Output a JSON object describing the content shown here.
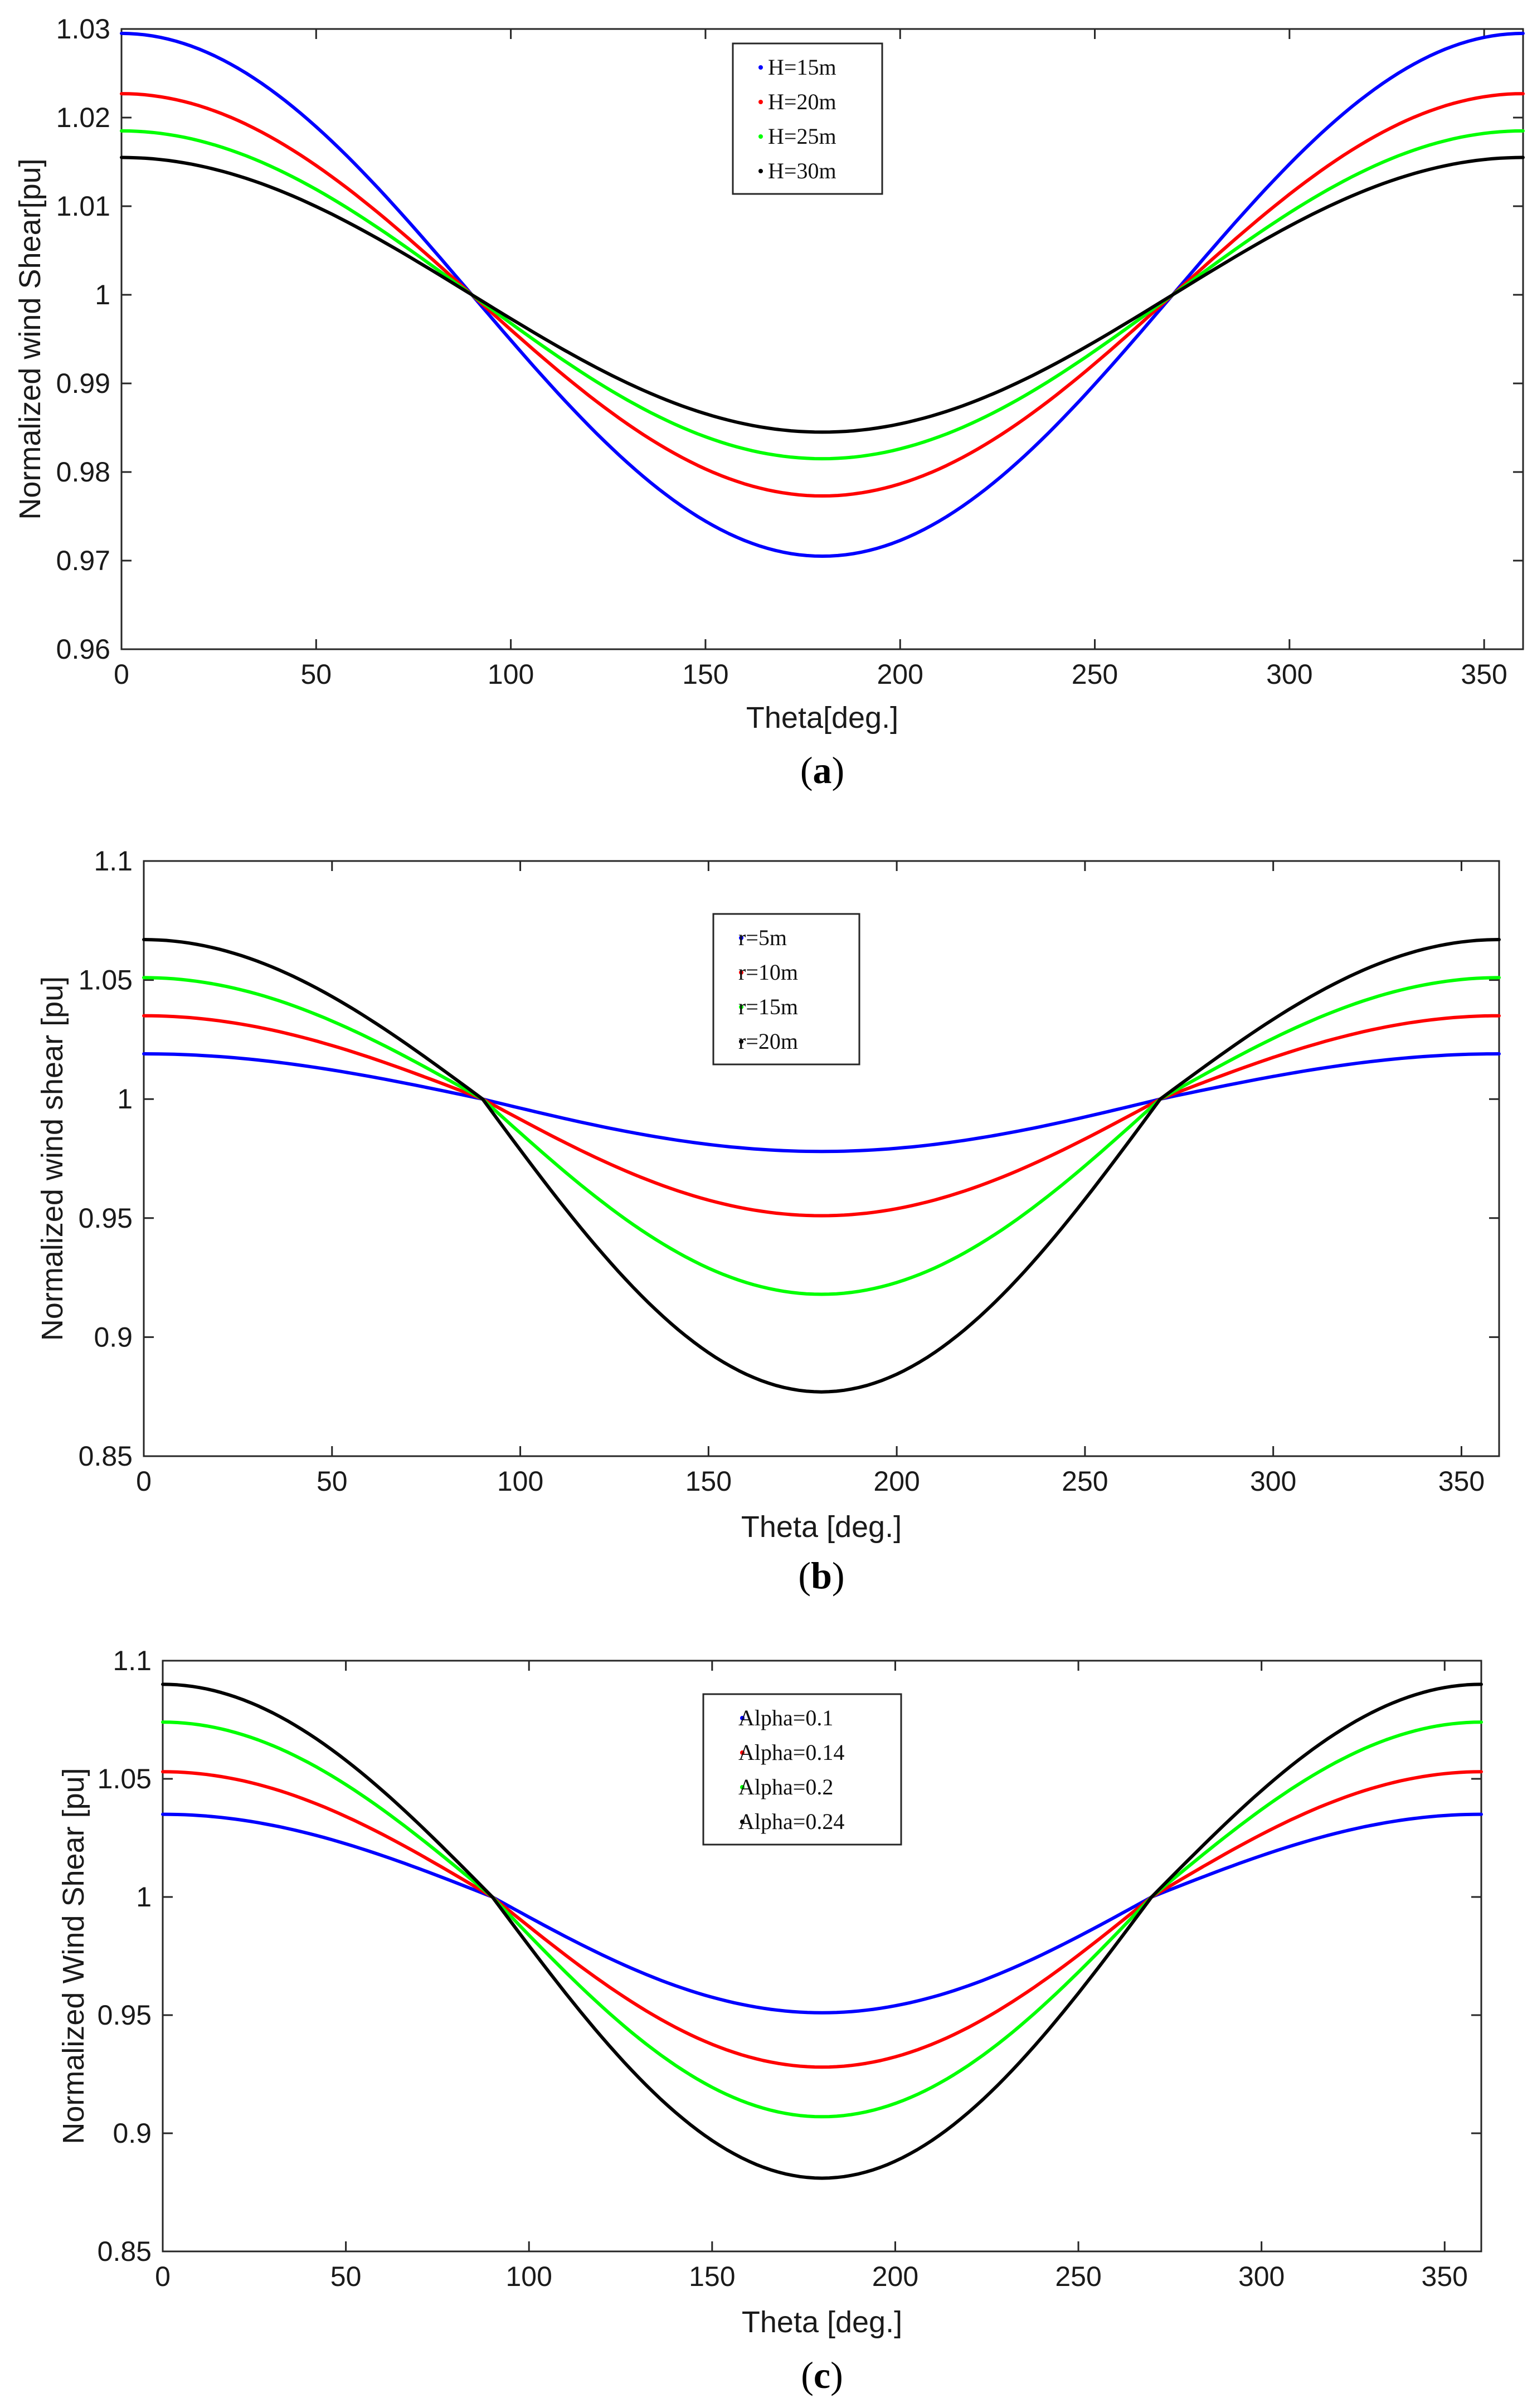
{
  "chart_data": [
    {
      "type": "line",
      "caption": "a",
      "xlabel": "Theta[deg.]",
      "ylabel": "Normalized wind Shear[pu]",
      "xlim": [
        0,
        360
      ],
      "ylim": [
        0.96,
        1.03
      ],
      "xticks": [
        "0",
        "50",
        "100",
        "150",
        "200",
        "250",
        "300",
        "350"
      ],
      "xtick_values": [
        0,
        50,
        100,
        150,
        200,
        250,
        300,
        350
      ],
      "yticks": [
        "0.96",
        "0.97",
        "0.98",
        "0.99",
        "1",
        "1.01",
        "1.02",
        "1.03"
      ],
      "ytick_values": [
        0.96,
        0.97,
        0.98,
        0.99,
        1,
        1.01,
        1.02,
        1.03
      ],
      "legend_position": "top-center",
      "grid": false,
      "series": [
        {
          "name": "H=15m",
          "color": "#0000ff",
          "amplitude": 0.0295
        },
        {
          "name": "H=20m",
          "color": "#ff0000",
          "amplitude": 0.0227
        },
        {
          "name": "H=25m",
          "color": "#00ff00",
          "amplitude": 0.0185
        },
        {
          "name": "H=30m",
          "color": "#000000",
          "amplitude": 0.0155
        }
      ]
    },
    {
      "type": "line",
      "caption": "b",
      "xlabel": "Theta [deg.]",
      "ylabel": "Normalized wind shear [pu]",
      "xlim": [
        0,
        360
      ],
      "ylim": [
        0.85,
        1.1
      ],
      "xticks": [
        "0",
        "50",
        "100",
        "150",
        "200",
        "250",
        "300",
        "350"
      ],
      "xtick_values": [
        0,
        50,
        100,
        150,
        200,
        250,
        300,
        350
      ],
      "yticks": [
        "0.85",
        "0.9",
        "0.95",
        "1",
        "1.05",
        "1.1"
      ],
      "ytick_values": [
        0.85,
        0.9,
        0.95,
        1,
        1.05,
        1.1
      ],
      "legend_position": "top-center",
      "grid": false,
      "series": [
        {
          "name": "r=5m",
          "color": "#0000ff",
          "max": 1.019,
          "min": 0.978
        },
        {
          "name": "r=10m",
          "color": "#ff0000",
          "max": 1.035,
          "min": 0.951
        },
        {
          "name": "r=15m",
          "color": "#00ff00",
          "max": 1.051,
          "min": 0.918
        },
        {
          "name": "r=20m",
          "color": "#000000",
          "max": 1.067,
          "min": 0.877
        }
      ]
    },
    {
      "type": "line",
      "caption": "c",
      "xlabel": "Theta [deg.]",
      "ylabel": "Normalized Wind Shear [pu]",
      "xlim": [
        0,
        360
      ],
      "ylim": [
        0.85,
        1.1
      ],
      "xticks": [
        "0",
        "50",
        "100",
        "150",
        "200",
        "250",
        "300",
        "350"
      ],
      "xtick_values": [
        0,
        50,
        100,
        150,
        200,
        250,
        300,
        350
      ],
      "yticks": [
        "0.85",
        "0.9",
        "0.95",
        "1",
        "1.05",
        "1.1"
      ],
      "ytick_values": [
        0.85,
        0.9,
        0.95,
        1,
        1.05,
        1.1
      ],
      "legend_position": "top-center",
      "grid": false,
      "series": [
        {
          "name": "Alpha=0.1",
          "color": "#0000ff",
          "max": 1.035,
          "min": 0.951
        },
        {
          "name": "Alpha=0.14",
          "color": "#ff0000",
          "max": 1.053,
          "min": 0.928
        },
        {
          "name": "Alpha=0.2",
          "color": "#00ff00",
          "max": 1.074,
          "min": 0.907
        },
        {
          "name": "Alpha=0.24",
          "color": "#000000",
          "max": 1.09,
          "min": 0.881
        }
      ]
    }
  ]
}
